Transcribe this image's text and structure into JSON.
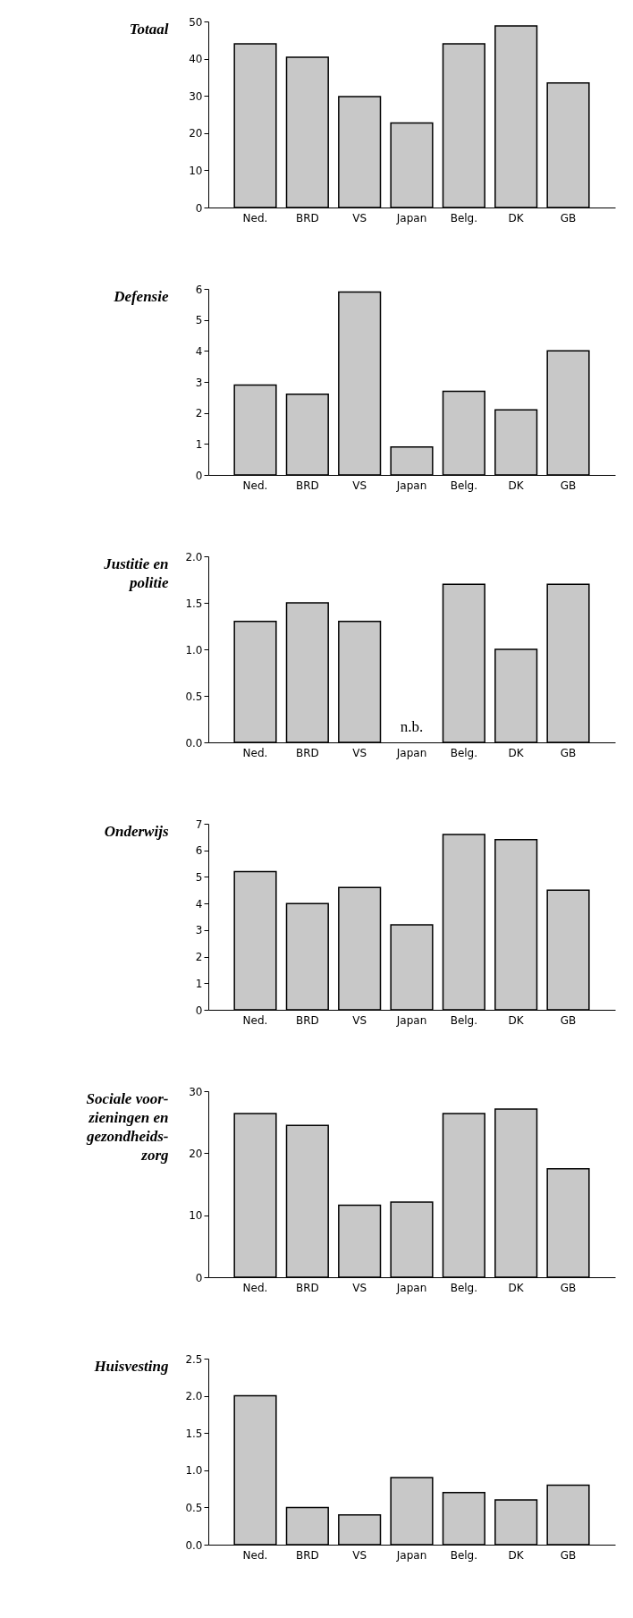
{
  "chart_data": [
    {
      "type": "bar",
      "title": "Totaal",
      "categories": [
        "Ned.",
        "BRD",
        "VS",
        "Japan",
        "Belg.",
        "DK",
        "GB"
      ],
      "values": [
        44.0,
        40.4,
        29.8,
        22.7,
        44.0,
        48.8,
        33.5
      ],
      "color": "#c8c8c8",
      "ylim": [
        0,
        50
      ],
      "yticks": [
        0,
        10,
        20,
        30,
        40,
        50
      ]
    },
    {
      "type": "bar",
      "title": "Defensie",
      "categories": [
        "Ned.",
        "BRD",
        "VS",
        "Japan",
        "Belg.",
        "DK",
        "GB"
      ],
      "values": [
        2.9,
        2.6,
        5.9,
        0.9,
        2.7,
        2.1,
        4.0
      ],
      "color": "#c8c8c8",
      "ylim": [
        0,
        6
      ],
      "yticks": [
        0,
        1,
        2,
        3,
        4,
        5,
        6
      ]
    },
    {
      "type": "bar",
      "title": "Justitie en\npolitie",
      "categories": [
        "Ned.",
        "BRD",
        "VS",
        "Japan",
        "Belg.",
        "DK",
        "GB"
      ],
      "values": [
        1.3,
        1.5,
        1.3,
        null,
        1.7,
        1.0,
        1.7
      ],
      "color": "#c8c8c8",
      "ylim": [
        0,
        2.0
      ],
      "yticks": [
        {
          "value": 0,
          "label": "0.0"
        },
        {
          "value": 0.5,
          "label": "0.5"
        },
        {
          "value": 1.0,
          "label": "1.0"
        },
        {
          "value": 1.5,
          "label": "1.5"
        },
        {
          "value": 2.0,
          "label": "2.0"
        }
      ],
      "annotations": [
        "n.b."
      ]
    },
    {
      "type": "bar",
      "title": "Onderwijs",
      "categories": [
        "Ned.",
        "BRD",
        "VS",
        "Japan",
        "Belg.",
        "DK",
        "GB"
      ],
      "values": [
        5.2,
        4.0,
        4.6,
        3.2,
        6.6,
        6.4,
        4.5
      ],
      "color": "#c8c8c8",
      "ylim": [
        0,
        7
      ],
      "yticks": [
        0,
        1,
        2,
        3,
        4,
        5,
        6,
        7
      ]
    },
    {
      "type": "bar",
      "title": "Sociale voor-\nzieningen en\ngezondheids-\nzorg",
      "categories": [
        "Ned.",
        "BRD",
        "VS",
        "Japan",
        "Belg.",
        "DK",
        "GB"
      ],
      "values": [
        26.4,
        24.5,
        11.6,
        12.1,
        26.4,
        27.1,
        17.5
      ],
      "color": "#c8c8c8",
      "ylim": [
        0,
        30
      ],
      "yticks": [
        0,
        10,
        20,
        30
      ]
    },
    {
      "type": "bar",
      "title": "Huisvesting",
      "categories": [
        "Ned.",
        "BRD",
        "VS",
        "Japan",
        "Belg.",
        "DK",
        "GB"
      ],
      "values": [
        2.0,
        0.5,
        0.4,
        0.9,
        0.7,
        0.6,
        0.8
      ],
      "color": "#c8c8c8",
      "ylim": [
        0,
        2.5
      ],
      "yticks": [
        {
          "value": 0,
          "label": "0.0"
        },
        {
          "value": 0.5,
          "label": "0.5"
        },
        {
          "value": 1.0,
          "label": "1.0"
        },
        {
          "value": 1.5,
          "label": "1.5"
        },
        {
          "value": 2.0,
          "label": "2.0"
        },
        {
          "value": 2.5,
          "label": "2.5"
        }
      ]
    }
  ]
}
